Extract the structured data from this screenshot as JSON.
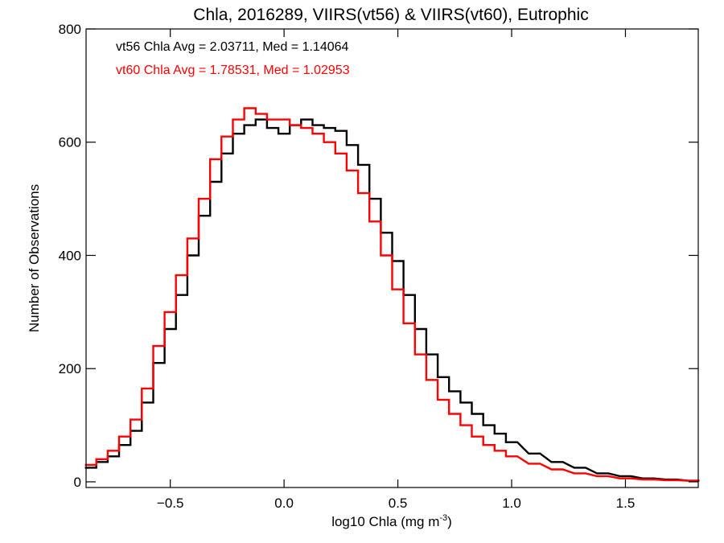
{
  "chart_data": {
    "type": "histogram",
    "title": "Chla, 2016289, VIIRS(vt56) & VIIRS(vt60), Eutrophic",
    "xlabel": "log10 Chla (mg m",
    "xlabel_sup": "-3",
    "xlabel_end": ")",
    "ylabel": "Number of Observations",
    "xlim": [
      -0.87,
      1.82
    ],
    "ylim": [
      -10,
      800
    ],
    "x_ticks": [
      -0.5,
      0.0,
      0.5,
      1.0,
      1.5
    ],
    "x_tick_labels": [
      "−0.5",
      "0.0",
      "0.5",
      "1.0",
      "1.5"
    ],
    "y_ticks": [
      0,
      200,
      400,
      600,
      800
    ],
    "y_tick_labels": [
      "0",
      "200",
      "400",
      "600",
      "800"
    ],
    "annotations": [
      {
        "text": "vt56 Chla Avg = 2.03711, Med = 1.14064",
        "color": "#000000"
      },
      {
        "text": "vt60 Chla Avg = 1.78531, Med = 1.02953",
        "color": "#ff0000"
      }
    ],
    "series": [
      {
        "color": "#000000",
        "x": [
          -0.85,
          -0.8,
          -0.75,
          -0.7,
          -0.65,
          -0.6,
          -0.55,
          -0.5,
          -0.45,
          -0.4,
          -0.35,
          -0.3,
          -0.25,
          -0.2,
          -0.15,
          -0.1,
          -0.05,
          0.0,
          0.05,
          0.1,
          0.15,
          0.2,
          0.25,
          0.3,
          0.35,
          0.4,
          0.45,
          0.5,
          0.55,
          0.6,
          0.65,
          0.7,
          0.75,
          0.8,
          0.85,
          0.9,
          0.95,
          1.0,
          1.1,
          1.2,
          1.3,
          1.4,
          1.5,
          1.6,
          1.7,
          1.8
        ],
        "y": [
          25,
          35,
          45,
          65,
          90,
          140,
          210,
          270,
          330,
          400,
          470,
          530,
          580,
          615,
          630,
          640,
          625,
          615,
          630,
          640,
          630,
          625,
          620,
          595,
          560,
          500,
          440,
          390,
          330,
          270,
          225,
          185,
          160,
          140,
          120,
          100,
          85,
          70,
          50,
          35,
          25,
          15,
          10,
          6,
          4,
          2
        ]
      },
      {
        "color": "#ff0000",
        "x": [
          -0.85,
          -0.8,
          -0.75,
          -0.7,
          -0.65,
          -0.6,
          -0.55,
          -0.5,
          -0.45,
          -0.4,
          -0.35,
          -0.3,
          -0.25,
          -0.2,
          -0.15,
          -0.1,
          -0.05,
          0.0,
          0.05,
          0.1,
          0.15,
          0.2,
          0.25,
          0.3,
          0.35,
          0.4,
          0.45,
          0.5,
          0.55,
          0.6,
          0.65,
          0.7,
          0.75,
          0.8,
          0.85,
          0.9,
          0.95,
          1.0,
          1.1,
          1.2,
          1.3,
          1.4,
          1.5,
          1.6,
          1.7,
          1.8
        ],
        "y": [
          30,
          40,
          55,
          80,
          110,
          165,
          240,
          300,
          365,
          430,
          500,
          570,
          610,
          640,
          660,
          650,
          640,
          640,
          630,
          625,
          615,
          600,
          580,
          550,
          510,
          460,
          400,
          340,
          280,
          225,
          180,
          145,
          120,
          100,
          80,
          65,
          55,
          45,
          32,
          22,
          15,
          10,
          6,
          4,
          3,
          2
        ]
      }
    ]
  }
}
